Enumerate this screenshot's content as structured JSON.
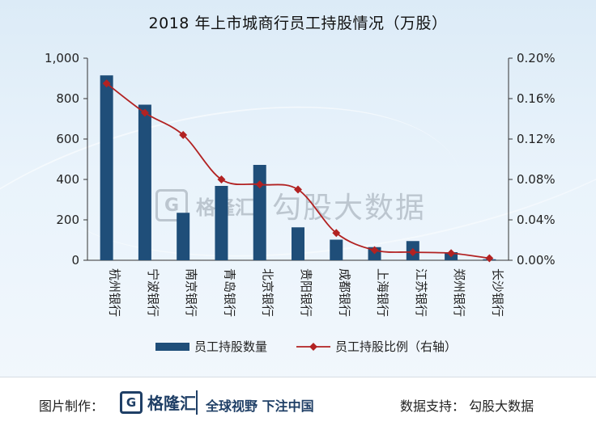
{
  "chart_data": {
    "type": "bar",
    "title": "2018 年上市城商行员工持股情况（万股）",
    "categories": [
      "杭州银行",
      "宁波银行",
      "南京银行",
      "青岛银行",
      "北京银行",
      "贵阳银行",
      "成都银行",
      "上海银行",
      "江苏银行",
      "郑州银行",
      "长沙银行"
    ],
    "series": [
      {
        "name": "员工持股数量",
        "type": "bar",
        "axis": "left",
        "color": "#1f4e79",
        "values": [
          915,
          770,
          235,
          368,
          472,
          163,
          102,
          65,
          95,
          40,
          5
        ]
      },
      {
        "name": "员工持股比例（右轴）",
        "type": "line",
        "axis": "right",
        "color": "#b22222",
        "values": [
          0.175,
          0.146,
          0.124,
          0.08,
          0.075,
          0.07,
          0.027,
          0.01,
          0.008,
          0.007,
          0.002
        ]
      }
    ],
    "y_left": {
      "min": 0,
      "max": 1000,
      "ticks": [
        0,
        200,
        400,
        600,
        800,
        1000
      ],
      "tick_labels": [
        "0",
        "200",
        "400",
        "600",
        "800",
        "1,000"
      ]
    },
    "y_right": {
      "min": 0,
      "max": 0.2,
      "unit": "%",
      "ticks": [
        0,
        0.04,
        0.08,
        0.12,
        0.16,
        0.2
      ],
      "tick_labels": [
        "0.00%",
        "0.04%",
        "0.08%",
        "0.12%",
        "0.16%",
        "0.20%"
      ]
    },
    "legend_position": "bottom",
    "grid": false
  },
  "watermark": {
    "logo_letter": "G",
    "brand": "格隆汇",
    "text": "勾股大数据"
  },
  "footer": {
    "label": "图片制作：",
    "logo_letter": "G",
    "brand": "格隆汇",
    "slogan": "全球视野 下注中国",
    "source": "数据支持：  勾股大数据"
  }
}
